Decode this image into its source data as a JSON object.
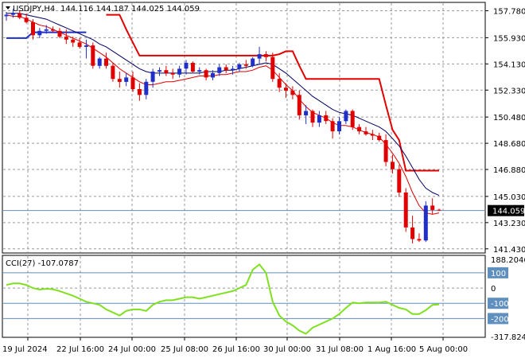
{
  "header": {
    "symbol": "USDJPY,H4",
    "ohlc": "144.116 144.187 144.025 144.059"
  },
  "price_axis": {
    "ticks": [
      "157.780",
      "155.930",
      "154.130",
      "152.330",
      "150.480",
      "148.680",
      "146.880",
      "145.030",
      "143.230",
      "141.430"
    ],
    "current_label": "144.059"
  },
  "cci": {
    "label": "CCI(27) -107.0787",
    "ticks": [
      "188.2046",
      "100",
      "0",
      "-100",
      "-200",
      "-317.824"
    ],
    "levels_highlighted": [
      "100",
      "-100",
      "-200"
    ]
  },
  "time_axis": {
    "labels": [
      "19 Jul 2024",
      "22 Jul 16:00",
      "24 Jul 00:00",
      "25 Jul 08:00",
      "26 Jul 16:00",
      "30 Jul 00:00",
      "31 Jul 08:00",
      "1 Aug 16:00",
      "5 Aug 00:00"
    ]
  },
  "colors": {
    "bull": "#1f2fc8",
    "bear": "#e00000",
    "ma_fast": "#e00000",
    "ma_slow": "#000060",
    "trail_red": "#e00000",
    "trail_blue": "#1f2fc8",
    "cci_line": "#7fe020",
    "grid": "#9a9a9a",
    "level": "#5f8fbf",
    "current_box": "#000000"
  },
  "chart_data": {
    "type": "candlestick",
    "price_range": [
      141.2,
      158.3
    ],
    "cci_range": [
      -317.824,
      188.2046
    ],
    "candles": [
      [
        157.4,
        157.7,
        157.1,
        157.5
      ],
      [
        157.5,
        157.9,
        157.3,
        157.6
      ],
      [
        157.6,
        157.8,
        157.2,
        157.3
      ],
      [
        157.3,
        157.6,
        156.9,
        157.0
      ],
      [
        157.0,
        157.2,
        155.8,
        156.1
      ],
      [
        156.1,
        156.6,
        155.9,
        156.4
      ],
      [
        156.4,
        156.8,
        156.2,
        156.5
      ],
      [
        156.5,
        156.7,
        156.3,
        156.4
      ],
      [
        156.4,
        156.6,
        155.9,
        156.0
      ],
      [
        156.0,
        156.5,
        155.5,
        155.8
      ],
      [
        155.8,
        156.0,
        155.3,
        155.6
      ],
      [
        155.6,
        155.9,
        155.2,
        155.3
      ],
      [
        155.3,
        155.8,
        154.5,
        155.4
      ],
      [
        155.4,
        155.6,
        153.8,
        154.0
      ],
      [
        154.0,
        154.6,
        153.8,
        154.5
      ],
      [
        154.5,
        154.9,
        153.8,
        154.0
      ],
      [
        154.0,
        154.2,
        152.9,
        153.1
      ],
      [
        153.1,
        153.6,
        152.5,
        152.9
      ],
      [
        152.9,
        153.5,
        152.6,
        153.2
      ],
      [
        153.2,
        153.6,
        152.2,
        152.4
      ],
      [
        152.4,
        152.8,
        151.6,
        152.0
      ],
      [
        152.0,
        153.1,
        151.7,
        152.9
      ],
      [
        152.9,
        153.8,
        152.5,
        153.6
      ],
      [
        153.6,
        153.9,
        153.3,
        153.7
      ],
      [
        153.7,
        154.0,
        153.3,
        153.5
      ],
      [
        153.5,
        153.8,
        153.1,
        153.4
      ],
      [
        153.4,
        154.0,
        153.2,
        153.8
      ],
      [
        153.8,
        154.4,
        153.4,
        154.2
      ],
      [
        154.2,
        154.3,
        153.5,
        153.6
      ],
      [
        153.6,
        153.9,
        153.4,
        153.7
      ],
      [
        153.7,
        153.8,
        153.0,
        153.2
      ],
      [
        153.2,
        153.7,
        153.0,
        153.5
      ],
      [
        153.5,
        154.1,
        153.3,
        153.9
      ],
      [
        153.9,
        154.1,
        153.5,
        153.7
      ],
      [
        153.7,
        154.0,
        153.4,
        153.8
      ],
      [
        153.8,
        154.2,
        153.6,
        154.1
      ],
      [
        154.1,
        154.4,
        153.8,
        154.0
      ],
      [
        154.0,
        154.6,
        153.9,
        154.5
      ],
      [
        154.5,
        155.3,
        154.1,
        154.8
      ],
      [
        154.8,
        155.0,
        154.3,
        154.6
      ],
      [
        154.6,
        154.9,
        152.9,
        153.1
      ],
      [
        153.1,
        153.5,
        152.2,
        152.5
      ],
      [
        152.5,
        152.8,
        151.8,
        152.3
      ],
      [
        152.3,
        152.6,
        151.7,
        152.0
      ],
      [
        152.0,
        152.3,
        150.3,
        150.6
      ],
      [
        150.6,
        151.3,
        150.0,
        150.9
      ],
      [
        150.9,
        151.0,
        149.8,
        150.1
      ],
      [
        150.1,
        150.9,
        149.8,
        150.6
      ],
      [
        150.6,
        150.9,
        150.0,
        150.2
      ],
      [
        150.2,
        150.4,
        149.0,
        149.5
      ],
      [
        149.5,
        150.5,
        149.3,
        150.2
      ],
      [
        150.2,
        151.0,
        150.0,
        150.9
      ],
      [
        150.9,
        151.0,
        149.6,
        149.8
      ],
      [
        149.8,
        150.0,
        149.3,
        149.5
      ],
      [
        149.5,
        149.8,
        149.2,
        149.3
      ],
      [
        149.3,
        149.6,
        148.9,
        149.2
      ],
      [
        149.2,
        149.4,
        148.8,
        148.9
      ],
      [
        148.9,
        149.3,
        147.1,
        147.4
      ],
      [
        147.4,
        147.9,
        146.6,
        146.9
      ],
      [
        146.9,
        147.2,
        145.0,
        145.3
      ],
      [
        145.3,
        145.6,
        142.6,
        142.9
      ],
      [
        142.9,
        143.7,
        141.8,
        142.1
      ],
      [
        142.1,
        142.5,
        141.9,
        142.0
      ],
      [
        142.0,
        144.7,
        141.9,
        144.4
      ],
      [
        144.4,
        144.9,
        143.8,
        144.1
      ],
      [
        144.116,
        144.187,
        144.025,
        144.059
      ]
    ],
    "ma_fast": [
      157.5,
      157.4,
      157.4,
      157.2,
      157.0,
      156.8,
      156.7,
      156.5,
      156.3,
      156.1,
      155.9,
      155.7,
      155.5,
      155.2,
      154.9,
      154.6,
      154.2,
      153.8,
      153.5,
      153.2,
      152.9,
      152.7,
      152.7,
      152.8,
      152.9,
      152.9,
      153.0,
      153.1,
      153.2,
      153.3,
      153.3,
      153.3,
      153.4,
      153.4,
      153.5,
      153.6,
      153.6,
      153.7,
      153.9,
      154.0,
      153.7,
      153.2,
      152.7,
      152.3,
      151.7,
      151.2,
      150.8,
      150.6,
      150.4,
      150.1,
      149.9,
      149.9,
      149.8,
      149.6,
      149.4,
      149.3,
      149.1,
      148.6,
      148.0,
      147.3,
      146.4,
      145.3,
      144.4,
      143.9,
      143.8,
      143.9
    ],
    "ma_slow": [
      157.6,
      157.6,
      157.6,
      157.5,
      157.4,
      157.3,
      157.2,
      157.0,
      156.8,
      156.6,
      156.4,
      156.2,
      156.0,
      155.8,
      155.5,
      155.3,
      155.0,
      154.7,
      154.4,
      154.1,
      153.8,
      153.6,
      153.5,
      153.5,
      153.5,
      153.5,
      153.5,
      153.5,
      153.5,
      153.5,
      153.6,
      153.6,
      153.6,
      153.7,
      153.7,
      153.8,
      153.9,
      154.0,
      154.1,
      154.2,
      154.1,
      153.8,
      153.5,
      153.1,
      152.7,
      152.3,
      151.9,
      151.6,
      151.3,
      151.0,
      150.8,
      150.7,
      150.6,
      150.4,
      150.2,
      150.0,
      149.8,
      149.5,
      149.0,
      148.5,
      147.8,
      147.0,
      146.2,
      145.6,
      145.3,
      145.1
    ],
    "trail_red": [
      null,
      null,
      null,
      null,
      null,
      null,
      null,
      null,
      null,
      null,
      null,
      null,
      null,
      null,
      null,
      157.5,
      157.5,
      157.5,
      156.5,
      155.6,
      154.7,
      154.7,
      154.7,
      154.7,
      154.7,
      154.7,
      154.7,
      154.7,
      154.7,
      154.7,
      154.7,
      154.7,
      154.7,
      154.7,
      154.7,
      154.7,
      154.7,
      154.7,
      154.7,
      154.7,
      154.7,
      154.8,
      155.0,
      155.0,
      154.0,
      153.1,
      153.1,
      153.1,
      153.1,
      153.1,
      153.1,
      153.1,
      153.1,
      153.1,
      153.1,
      153.1,
      153.1,
      151.3,
      149.6,
      148.9,
      146.8,
      146.8,
      146.8,
      146.8,
      146.8,
      146.8
    ],
    "trail_blue": [
      155.9,
      155.9,
      155.9,
      155.9,
      156.3,
      156.3,
      156.3,
      156.3,
      156.3,
      156.3,
      156.3,
      156.3,
      156.3,
      null,
      null,
      null,
      null,
      null,
      null,
      null,
      null,
      null,
      null,
      null,
      null,
      null,
      null,
      null,
      null,
      null,
      null,
      null,
      null,
      null,
      null,
      null,
      null,
      null,
      null,
      null,
      null,
      null,
      null,
      null,
      null,
      null,
      null,
      null,
      null,
      null,
      null,
      null,
      null,
      null,
      null,
      null,
      null,
      null,
      null,
      null,
      null,
      null,
      null,
      null,
      null,
      null
    ],
    "cci_values": [
      20,
      30,
      30,
      20,
      0,
      -10,
      -5,
      -8,
      -20,
      -35,
      -50,
      -70,
      -90,
      -100,
      -110,
      -140,
      -160,
      -180,
      -150,
      -140,
      -140,
      -150,
      -110,
      -90,
      -80,
      -80,
      -70,
      -60,
      -60,
      -70,
      -60,
      -50,
      -40,
      -30,
      -20,
      0,
      20,
      120,
      155,
      100,
      -90,
      -180,
      -220,
      -245,
      -280,
      -300,
      -260,
      -240,
      -220,
      -200,
      -170,
      -130,
      -95,
      -100,
      -95,
      -95,
      -95,
      -90,
      -110,
      -130,
      -140,
      -170,
      -170,
      -145,
      -110,
      -107
    ]
  }
}
